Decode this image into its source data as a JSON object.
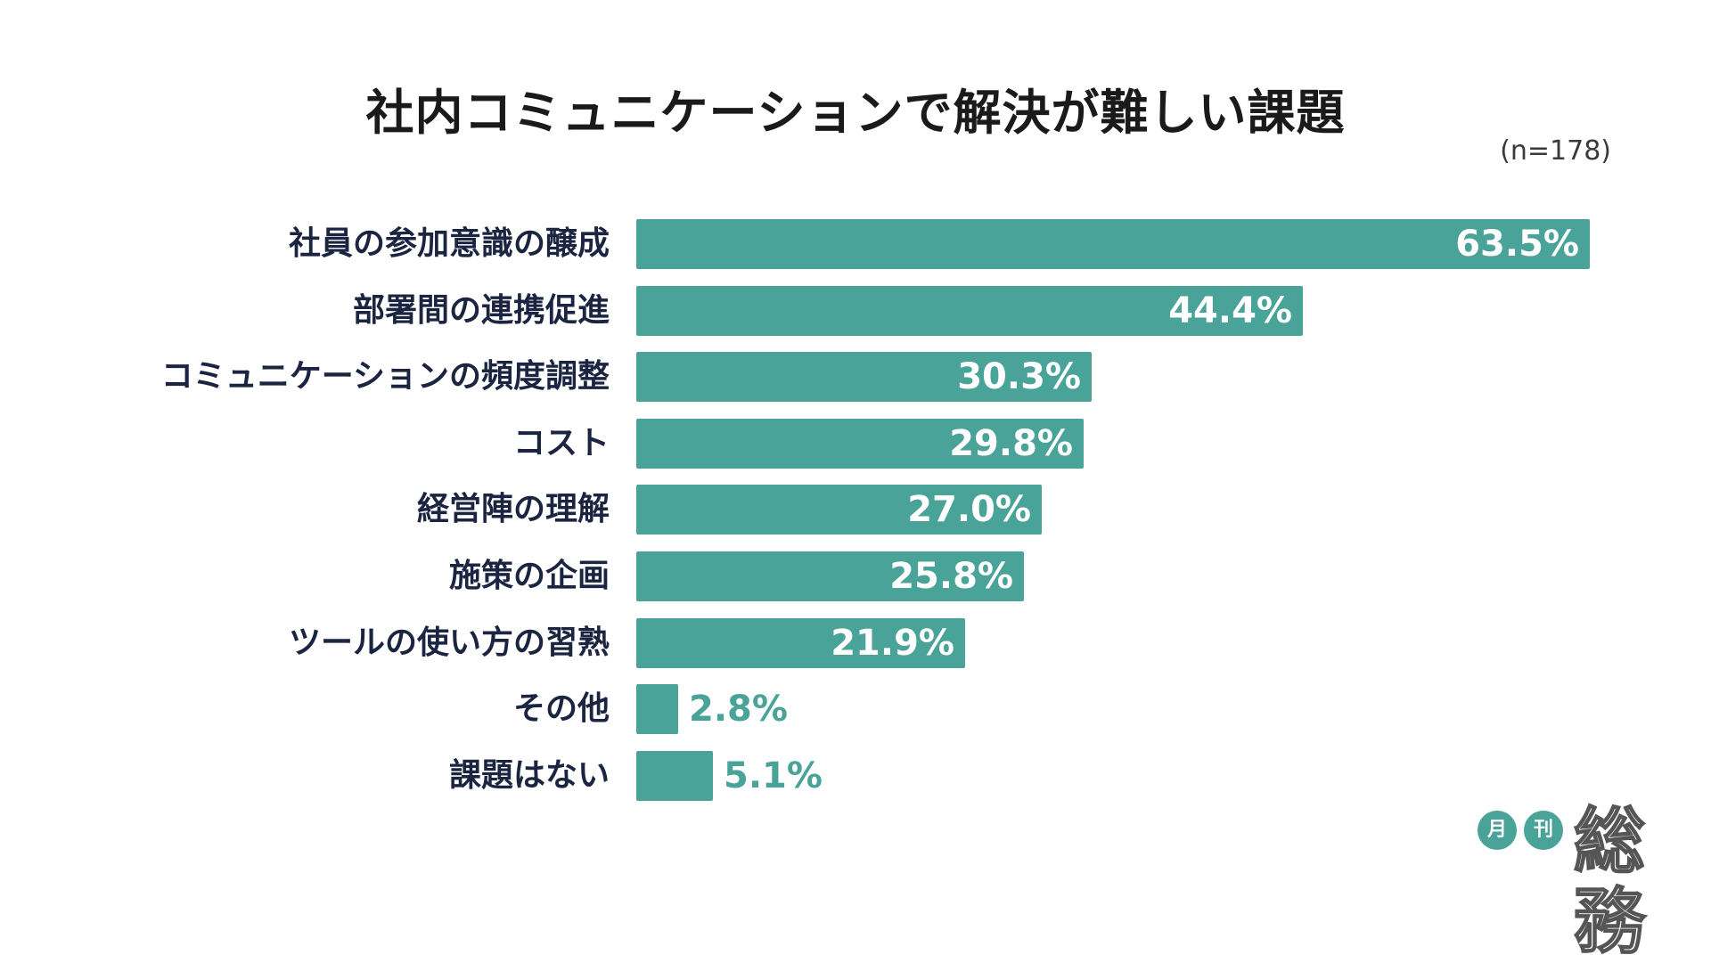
{
  "chart_data": {
    "type": "bar",
    "orientation": "horizontal",
    "title": "社内コミュニケーションで解決が難しい課題",
    "sample_size": "(n=178)",
    "unit": "%",
    "xlim": [
      0,
      63.5
    ],
    "categories": [
      "社員の参加意識の醸成",
      "部署間の連携促進",
      "コミュニケーションの頻度調整",
      "コスト",
      "経営陣の理解",
      "施策の企画",
      "ツールの使い方の習熟",
      "その他",
      "課題はない"
    ],
    "values": [
      63.5,
      44.4,
      30.3,
      29.8,
      27.0,
      25.8,
      21.9,
      2.8,
      5.1
    ],
    "value_labels": [
      "63.5%",
      "44.4%",
      "30.3%",
      "29.8%",
      "27.0%",
      "25.8%",
      "21.9%",
      "2.8%",
      "5.1%"
    ],
    "bar_color": "#4aa398"
  },
  "logo": {
    "badge1": "月",
    "badge2": "刊",
    "word": "総務"
  }
}
